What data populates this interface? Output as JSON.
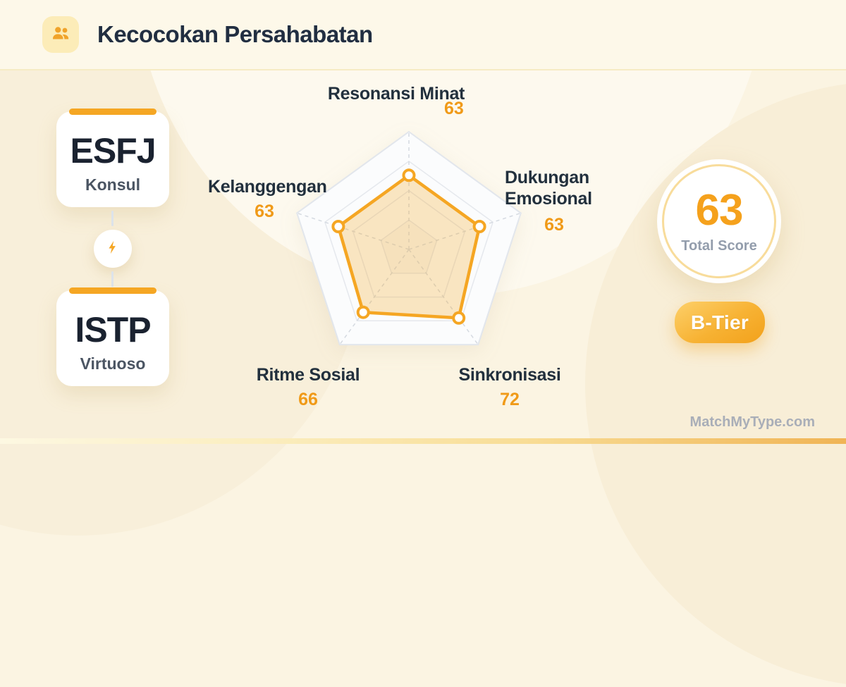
{
  "header": {
    "title": "Kecocokan Persahabatan",
    "icon": "people-icon"
  },
  "pair": {
    "first": {
      "code": "ESFJ",
      "name": "Konsul"
    },
    "second": {
      "code": "ISTP",
      "name": "Virtuoso"
    },
    "connector_icon": "lightning-bolt-icon"
  },
  "chart_data": {
    "type": "radar",
    "title": "Kecocokan Persahabatan",
    "max": 100,
    "grid_levels": [
      0.25,
      0.5,
      0.75,
      1
    ],
    "axes": [
      {
        "label": "Resonansi Minat",
        "value": 63
      },
      {
        "label": "Dukungan Emosional",
        "value": 63
      },
      {
        "label": "Sinkronisasi",
        "value": 72
      },
      {
        "label": "Ritme Sosial",
        "value": 66
      },
      {
        "label": "Kelanggengan",
        "value": 63
      }
    ],
    "series_color": "#F5A623",
    "fill_color": "rgba(245,166,35,0.27)",
    "marker": {
      "fill": "#ffffff",
      "stroke": "#F5A623"
    }
  },
  "score": {
    "value": 63,
    "label": "Total Score"
  },
  "tier": {
    "label": "B-Tier"
  },
  "watermark": "MatchMyType.com",
  "colors": {
    "accent": "#F5A623",
    "navy": "#22303D",
    "value_orange": "#F09A18"
  }
}
